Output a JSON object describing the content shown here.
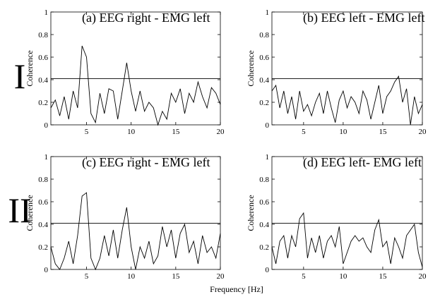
{
  "row_labels": [
    "I",
    "II"
  ],
  "x_label": "Frequency [Hz]",
  "chart_data": [
    {
      "type": "line",
      "title": "(a) EEG right - EMG left",
      "y_label": "Coherence",
      "x": [
        1,
        1.5,
        2,
        2.5,
        3,
        3.5,
        4,
        4.5,
        5,
        5.5,
        6,
        6.5,
        7,
        7.5,
        8,
        8.5,
        9,
        9.5,
        10,
        10.5,
        11,
        11.5,
        12,
        12.5,
        13,
        13.5,
        14,
        14.5,
        15,
        15.5,
        16,
        16.5,
        17,
        17.5,
        18,
        18.5,
        19,
        19.5,
        20
      ],
      "series": [
        {
          "color": "#000000",
          "values": [
            0.15,
            0.22,
            0.08,
            0.25,
            0.05,
            0.3,
            0.15,
            0.7,
            0.6,
            0.1,
            0.02,
            0.28,
            0.1,
            0.32,
            0.3,
            0.05,
            0.3,
            0.55,
            0.3,
            0.12,
            0.3,
            0.12,
            0.2,
            0.15,
            0.0,
            0.12,
            0.05,
            0.28,
            0.2,
            0.32,
            0.1,
            0.28,
            0.2,
            0.38,
            0.25,
            0.15,
            0.33,
            0.28,
            0.18
          ]
        }
      ],
      "threshold": 0.41,
      "xlim": [
        1,
        20
      ],
      "ylim": [
        0,
        1
      ],
      "xticks": [
        5,
        10,
        15,
        20
      ],
      "yticks": [
        0,
        0.2,
        0.4,
        0.6,
        0.8,
        1
      ]
    },
    {
      "type": "line",
      "title": "(b) EEG left - EMG left",
      "y_label": "Coherence",
      "x": [
        1,
        1.5,
        2,
        2.5,
        3,
        3.5,
        4,
        4.5,
        5,
        5.5,
        6,
        6.5,
        7,
        7.5,
        8,
        8.5,
        9,
        9.5,
        10,
        10.5,
        11,
        11.5,
        12,
        12.5,
        13,
        13.5,
        14,
        14.5,
        15,
        15.5,
        16,
        16.5,
        17,
        17.5,
        18,
        18.5,
        19,
        19.5,
        20
      ],
      "series": [
        {
          "color": "#000000",
          "values": [
            0.3,
            0.35,
            0.15,
            0.3,
            0.1,
            0.25,
            0.05,
            0.3,
            0.12,
            0.18,
            0.08,
            0.2,
            0.28,
            0.1,
            0.3,
            0.15,
            0.02,
            0.22,
            0.3,
            0.15,
            0.25,
            0.2,
            0.1,
            0.3,
            0.22,
            0.05,
            0.2,
            0.35,
            0.1,
            0.25,
            0.3,
            0.38,
            0.43,
            0.2,
            0.32,
            0.0,
            0.25,
            0.1,
            0.18
          ]
        }
      ],
      "threshold": 0.41,
      "xlim": [
        1,
        20
      ],
      "ylim": [
        0,
        1
      ],
      "xticks": [
        5,
        10,
        15,
        20
      ],
      "yticks": [
        0,
        0.2,
        0.4,
        0.6,
        0.8,
        1
      ]
    },
    {
      "type": "line",
      "title": "(c) EEG right - EMG left",
      "y_label": "Coherence",
      "x": [
        1,
        1.5,
        2,
        2.5,
        3,
        3.5,
        4,
        4.5,
        5,
        5.5,
        6,
        6.5,
        7,
        7.5,
        8,
        8.5,
        9,
        9.5,
        10,
        10.5,
        11,
        11.5,
        12,
        12.5,
        13,
        13.5,
        14,
        14.5,
        15,
        15.5,
        16,
        16.5,
        17,
        17.5,
        18,
        18.5,
        19,
        19.5,
        20
      ],
      "series": [
        {
          "color": "#000000",
          "values": [
            0.2,
            0.05,
            0.0,
            0.1,
            0.25,
            0.05,
            0.3,
            0.65,
            0.68,
            0.1,
            0.0,
            0.1,
            0.3,
            0.12,
            0.35,
            0.1,
            0.35,
            0.55,
            0.2,
            0.0,
            0.2,
            0.1,
            0.25,
            0.05,
            0.12,
            0.38,
            0.2,
            0.35,
            0.1,
            0.32,
            0.4,
            0.15,
            0.25,
            0.05,
            0.3,
            0.15,
            0.2,
            0.1,
            0.32
          ]
        }
      ],
      "threshold": 0.41,
      "xlim": [
        1,
        20
      ],
      "ylim": [
        0,
        1
      ],
      "xticks": [
        5,
        10,
        15,
        20
      ],
      "yticks": [
        0,
        0.2,
        0.4,
        0.6,
        0.8,
        1
      ]
    },
    {
      "type": "line",
      "title": "(d) EEG left- EMG left",
      "y_label": "Coherence",
      "x": [
        1,
        1.5,
        2,
        2.5,
        3,
        3.5,
        4,
        4.5,
        5,
        5.5,
        6,
        6.5,
        7,
        7.5,
        8,
        8.5,
        9,
        9.5,
        10,
        10.5,
        11,
        11.5,
        12,
        12.5,
        13,
        13.5,
        14,
        14.5,
        15,
        15.5,
        16,
        16.5,
        17,
        17.5,
        18,
        18.5,
        19,
        19.5,
        20
      ],
      "series": [
        {
          "color": "#000000",
          "values": [
            0.2,
            0.05,
            0.25,
            0.3,
            0.1,
            0.3,
            0.2,
            0.45,
            0.5,
            0.1,
            0.28,
            0.15,
            0.3,
            0.1,
            0.25,
            0.3,
            0.2,
            0.38,
            0.05,
            0.15,
            0.25,
            0.3,
            0.25,
            0.28,
            0.2,
            0.15,
            0.35,
            0.44,
            0.2,
            0.25,
            0.05,
            0.28,
            0.2,
            0.1,
            0.3,
            0.35,
            0.4,
            0.15,
            0.02
          ]
        }
      ],
      "threshold": 0.41,
      "xlim": [
        1,
        20
      ],
      "ylim": [
        0,
        1
      ],
      "xticks": [
        5,
        10,
        15,
        20
      ],
      "yticks": [
        0,
        0.2,
        0.4,
        0.6,
        0.8,
        1
      ]
    }
  ]
}
